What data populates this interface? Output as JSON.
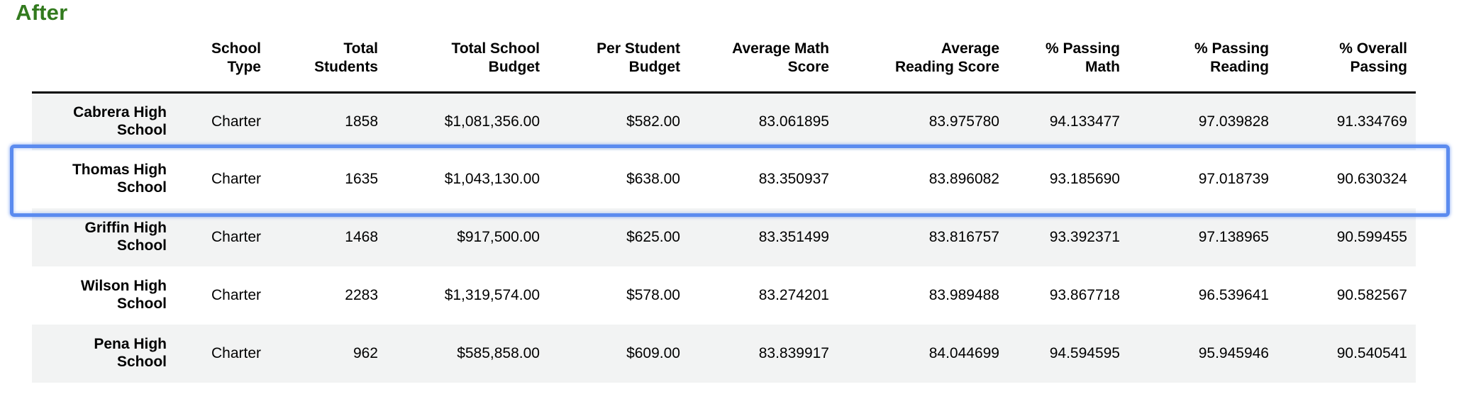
{
  "title": "After",
  "colors": {
    "title_green": "#327a1e",
    "highlight_blue": "#5b8bef",
    "row_stripe": "#f2f3f3",
    "header_rule": "#000000"
  },
  "table": {
    "columns": [
      "",
      "School Type",
      "Total Students",
      "Total School Budget",
      "Per Student Budget",
      "Average Math Score",
      "Average Reading Score",
      "% Passing Math",
      "% Passing Reading",
      "% Overall Passing"
    ],
    "rows": [
      {
        "school": "Cabrera High School",
        "values": [
          "Charter",
          "1858",
          "$1,081,356.00",
          "$582.00",
          "83.061895",
          "83.975780",
          "94.133477",
          "97.039828",
          "91.334769"
        ]
      },
      {
        "school": "Thomas High School",
        "values": [
          "Charter",
          "1635",
          "$1,043,130.00",
          "$638.00",
          "83.350937",
          "83.896082",
          "93.185690",
          "97.018739",
          "90.630324"
        ]
      },
      {
        "school": "Griffin High School",
        "values": [
          "Charter",
          "1468",
          "$917,500.00",
          "$625.00",
          "83.351499",
          "83.816757",
          "93.392371",
          "97.138965",
          "90.599455"
        ]
      },
      {
        "school": "Wilson High School",
        "values": [
          "Charter",
          "2283",
          "$1,319,574.00",
          "$578.00",
          "83.274201",
          "83.989488",
          "93.867718",
          "96.539641",
          "90.582567"
        ]
      },
      {
        "school": "Pena High School",
        "values": [
          "Charter",
          "962",
          "$585,858.00",
          "$609.00",
          "83.839917",
          "84.044699",
          "94.594595",
          "95.945946",
          "90.540541"
        ]
      }
    ],
    "highlighted_row": 1,
    "highlighted_school": "Thomas High School"
  }
}
